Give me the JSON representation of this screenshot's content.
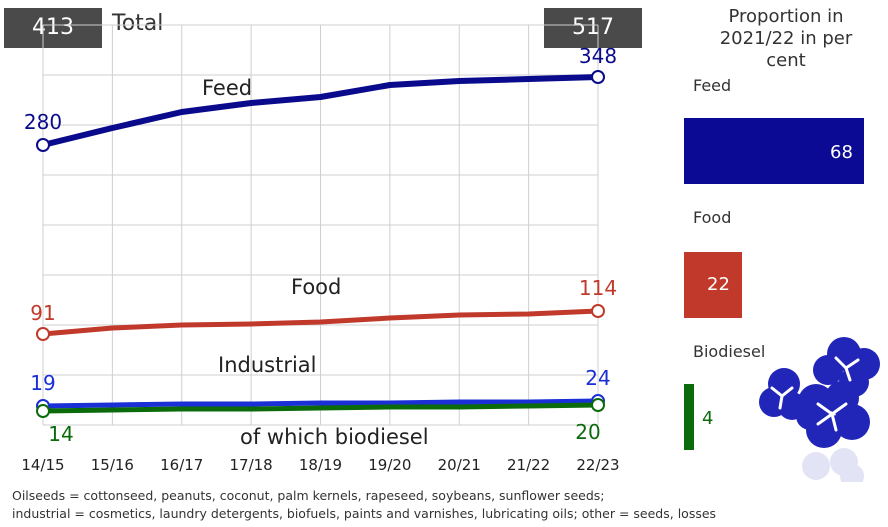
{
  "header": {
    "total_label": "Total",
    "total_start": "413",
    "total_end": "517"
  },
  "proportion": {
    "title": "Proportion in 2021/22 in per cent",
    "items": [
      {
        "label": "Feed",
        "value": 68,
        "color": "#0a0a94"
      },
      {
        "label": "Food",
        "value": 22,
        "color": "#c0392b"
      },
      {
        "label": "Biodiesel",
        "value": 4,
        "color": "#0b6b0b"
      }
    ]
  },
  "chart_data": {
    "type": "line",
    "categories": [
      "14/15",
      "15/16",
      "16/17",
      "17/18",
      "18/19",
      "19/20",
      "20/21",
      "21/22",
      "22/23"
    ],
    "series": [
      {
        "name": "Feed",
        "color": "#0a0a8c",
        "values": [
          280,
          297,
          313,
          322,
          328,
          340,
          344,
          346,
          348
        ],
        "start_label": "280",
        "end_label": "348"
      },
      {
        "name": "Food",
        "color": "#c0392b",
        "values": [
          91,
          97,
          100,
          101,
          103,
          107,
          110,
          111,
          114
        ],
        "start_label": "91",
        "end_label": "114"
      },
      {
        "name": "Industrial",
        "color": "#1a2fd6",
        "values": [
          19,
          20,
          21,
          21,
          22,
          22,
          23,
          23,
          24
        ],
        "start_label": "19",
        "end_label": "24"
      },
      {
        "name": "of which biodiesel",
        "color": "#0b6b0b",
        "values": [
          14,
          15,
          16,
          16,
          17,
          18,
          18,
          19,
          20
        ],
        "start_label": "14",
        "end_label": "20"
      }
    ],
    "ylim": [
      0,
      400
    ],
    "grid": true
  },
  "footnote": {
    "line1": "Oilseeds = cottonseed, peanuts, coconut, palm kernels, rapeseed, soybeans, sunflower seeds;",
    "line2": "industrial = cosmetics, laundry detergents, biofuels, paints and varnishes, lubricating oils; other = seeds, losses"
  }
}
